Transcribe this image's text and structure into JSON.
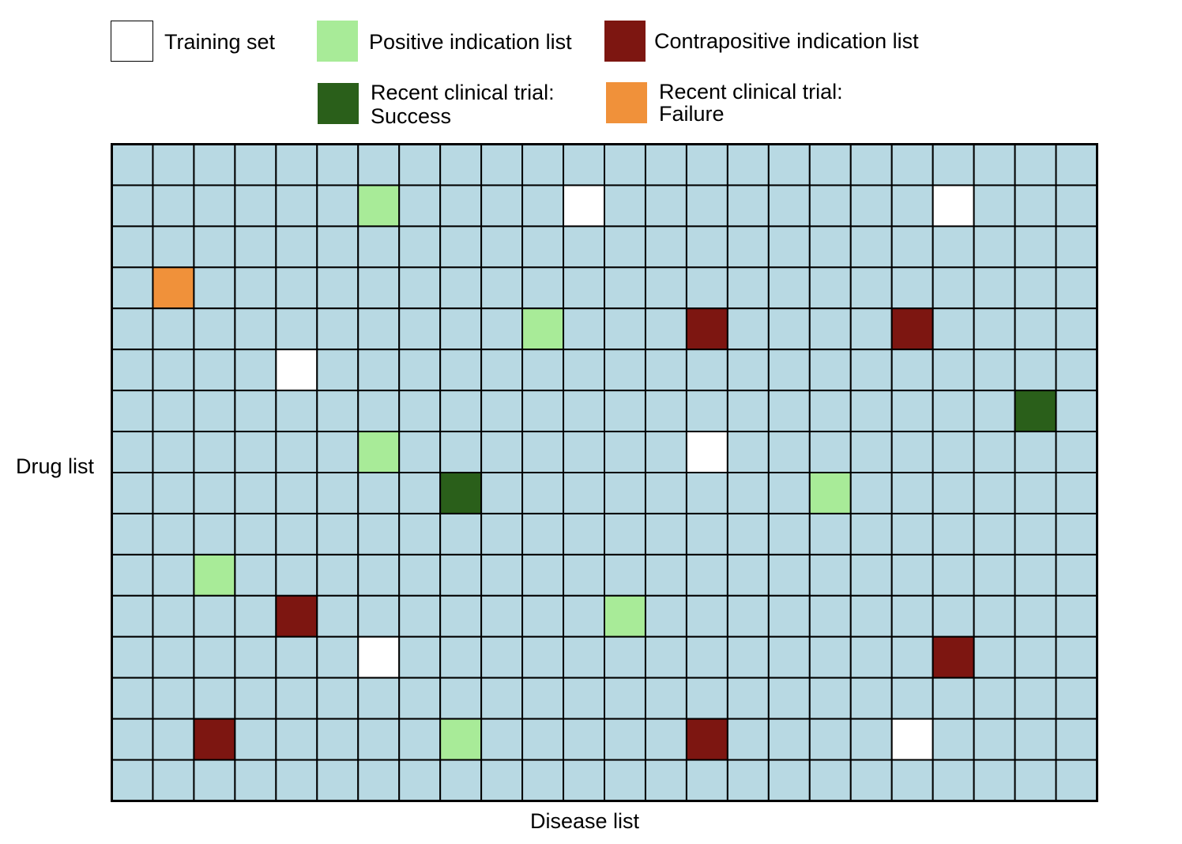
{
  "legend": {
    "training": {
      "label": "Training set",
      "color": "#ffffff"
    },
    "positive": {
      "label": "Positive indication list",
      "color": "#a8eb98"
    },
    "contrapositive": {
      "label": "Contrapositive indication list",
      "color": "#7d1611"
    },
    "success": {
      "line1": "Recent clinical trial:",
      "line2": "Success",
      "color": "#2a5f1a"
    },
    "failure": {
      "line1": "Recent clinical trial:",
      "line2": "Failure",
      "color": "#f0913a"
    }
  },
  "axes": {
    "y_label": "Drug list",
    "x_label": "Disease list"
  },
  "matrix": {
    "rows": 16,
    "cols": 24,
    "default_color": "#b8d9e3",
    "cells": [
      {
        "row": 1,
        "col": 6,
        "type": "positive"
      },
      {
        "row": 1,
        "col": 11,
        "type": "training"
      },
      {
        "row": 1,
        "col": 20,
        "type": "training"
      },
      {
        "row": 3,
        "col": 1,
        "type": "failure"
      },
      {
        "row": 4,
        "col": 10,
        "type": "positive"
      },
      {
        "row": 4,
        "col": 14,
        "type": "contrapositive"
      },
      {
        "row": 4,
        "col": 19,
        "type": "contrapositive"
      },
      {
        "row": 5,
        "col": 4,
        "type": "training"
      },
      {
        "row": 6,
        "col": 22,
        "type": "success"
      },
      {
        "row": 7,
        "col": 6,
        "type": "positive"
      },
      {
        "row": 7,
        "col": 14,
        "type": "training"
      },
      {
        "row": 8,
        "col": 8,
        "type": "success"
      },
      {
        "row": 8,
        "col": 17,
        "type": "positive"
      },
      {
        "row": 10,
        "col": 2,
        "type": "positive"
      },
      {
        "row": 11,
        "col": 4,
        "type": "contrapositive"
      },
      {
        "row": 11,
        "col": 12,
        "type": "positive"
      },
      {
        "row": 12,
        "col": 6,
        "type": "training"
      },
      {
        "row": 12,
        "col": 20,
        "type": "contrapositive"
      },
      {
        "row": 14,
        "col": 2,
        "type": "contrapositive"
      },
      {
        "row": 14,
        "col": 8,
        "type": "positive"
      },
      {
        "row": 14,
        "col": 14,
        "type": "contrapositive"
      },
      {
        "row": 14,
        "col": 19,
        "type": "training"
      }
    ]
  }
}
